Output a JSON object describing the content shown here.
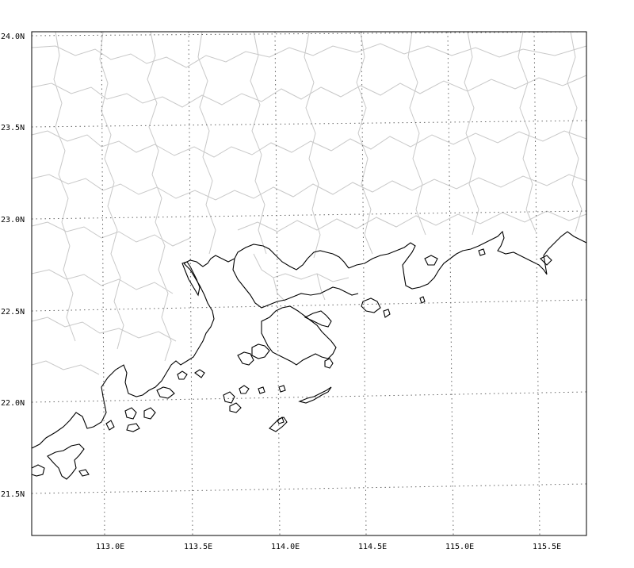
{
  "map": {
    "lat_labels": [
      "24.0N",
      "23.5N",
      "23.0N",
      "22.5N",
      "22.0N",
      "21.5N"
    ],
    "lon_labels": [
      "113.0E",
      "113.5E",
      "114.0E",
      "114.5E",
      "115.0E",
      "115.5E"
    ],
    "grid_line_style": "dotted",
    "colors": {
      "frame": "#000000",
      "grid": "#666666",
      "coastline": "#000000",
      "boundaries": "#c8c8c8",
      "background": "#ffffff"
    }
  }
}
